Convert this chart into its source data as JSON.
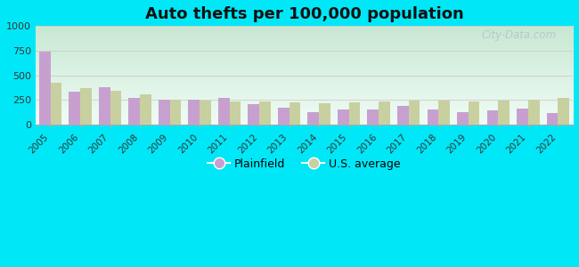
{
  "title": "Auto thefts per 100,000 population",
  "years": [
    2005,
    2006,
    2007,
    2008,
    2009,
    2010,
    2011,
    2012,
    2013,
    2014,
    2015,
    2016,
    2017,
    2018,
    2019,
    2020,
    2021,
    2022
  ],
  "plainfield": [
    740,
    330,
    375,
    270,
    255,
    255,
    275,
    205,
    175,
    130,
    155,
    150,
    185,
    155,
    130,
    140,
    165,
    115
  ],
  "us_average": [
    420,
    370,
    340,
    310,
    255,
    245,
    235,
    235,
    225,
    220,
    225,
    235,
    245,
    245,
    235,
    245,
    255,
    270
  ],
  "plainfield_color": "#c8a0d0",
  "us_average_color": "#c8d0a0",
  "ylim": [
    0,
    1000
  ],
  "yticks": [
    0,
    250,
    500,
    750,
    1000
  ],
  "background_outer": "#00e8f8",
  "background_grad_topleft": "#c8e8d0",
  "background_grad_bottomright": "#f0faf4",
  "title_fontsize": 13,
  "bar_width": 0.38,
  "legend_plainfield": "Plainfield",
  "legend_us": "U.S. average",
  "watermark": "City-Data.com"
}
